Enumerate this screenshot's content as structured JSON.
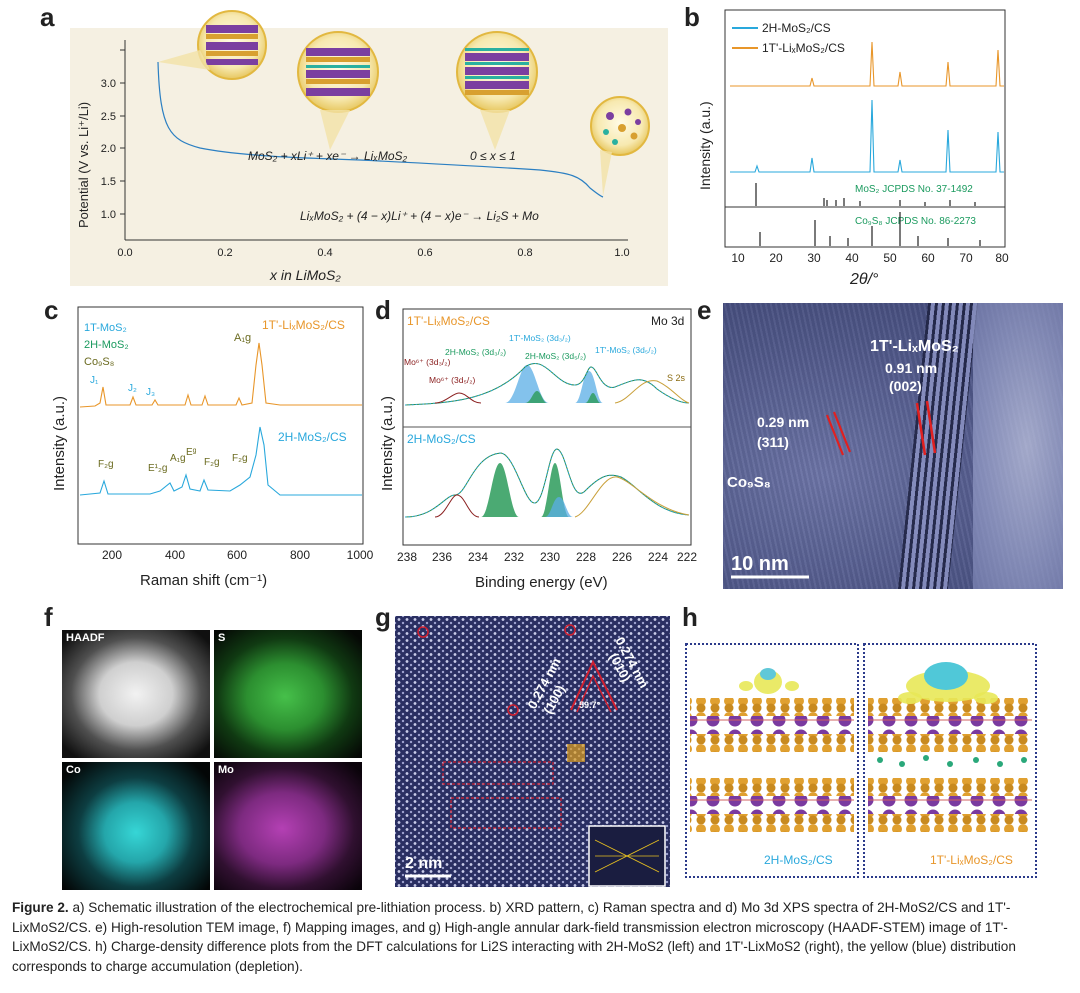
{
  "figure": {
    "label": "Figure 2.",
    "caption": "a) Schematic illustration of the electrochemical pre-lithiation process. b) XRD pattern, c) Raman spectra and d) Mo 3d XPS spectra of 2H-MoS2/CS and 1T'-LixMoS2/CS. e) High-resolution TEM image, f) Mapping images, and g) High-angle annular dark-field transmission electron microscopy (HAADF-STEM) image of 1T'-LixMoS2/CS. h) Charge-density difference plots from the DFT calculations for Li2S interacting with 2H-MoS2 (left) and 1T'-LixMoS2 (right), the yellow (blue) distribution corresponds to charge accumulation (depletion)."
  },
  "panel_a": {
    "label": "a",
    "ylabel": "Potential (V vs. Li⁺/Li)",
    "xlabel": "x in LiMoS₂",
    "eq1": "MoS₂ + xLi⁺ + xe⁻ → LiₓMoS₂",
    "eq1_range": "0 ≤ x ≤ 1",
    "eq2": "LiₓMoS₂ + (4 − x)Li⁺ + (4 − x)e⁻ → Li₂S + Mo",
    "xticks": [
      "0.0",
      "0.2",
      "0.4",
      "0.6",
      "0.8",
      "1.0"
    ],
    "yticks": [
      "1.0",
      "1.5",
      "2.0",
      "2.5",
      "3.0"
    ]
  },
  "panel_b": {
    "label": "b",
    "legend": [
      "2H-MoS₂/CS",
      "1T'-LiₓMoS₂/CS"
    ],
    "ylabel": "Intensity (a.u.)",
    "xlabel": "2θ/°",
    "ref1": "MoS₂ JCPDS No. 37-1492",
    "ref2": "Co₉S₈ JCPDS No. 86-2273",
    "xticks": [
      "10",
      "20",
      "30",
      "40",
      "50",
      "60",
      "70",
      "80"
    ]
  },
  "panel_c": {
    "label": "c",
    "legend": [
      "1T-MoS₂",
      "2H-MoS₂",
      "Co₉S₈"
    ],
    "series_top": "1T'-LiₓMoS₂/CS",
    "series_bottom": "2H-MoS₂/CS",
    "ylabel": "Intensity (a.u.)",
    "xlabel": "Raman shift (cm⁻¹)",
    "xticks": [
      "200",
      "400",
      "600",
      "800",
      "1000"
    ],
    "peaks_top": [
      "J₁",
      "J₂",
      "J₃",
      "A₁g"
    ],
    "peaks_bottom": [
      "F₂g",
      "E¹₂g",
      "A₁g",
      "Eᵍ",
      "F₂g",
      "F₂g"
    ]
  },
  "panel_d": {
    "label": "d",
    "title": "Mo 3d",
    "series_top": "1T'-LiₓMoS₂/CS",
    "series_bottom": "2H-MoS₂/CS",
    "ylabel": "Intensity (a.u.)",
    "xlabel": "Binding energy (eV)",
    "xticks": [
      "238",
      "236",
      "234",
      "232",
      "230",
      "228",
      "226",
      "224",
      "222"
    ],
    "annotations": [
      "Mo⁶⁺ (3d₃/₂)",
      "Mo⁶⁺ (3d₅/₂)",
      "2H-MoS₂ (3d₃/₂)",
      "1T'-MoS₂ (3d₃/₂)",
      "2H-MoS₂ (3d₅/₂)",
      "1T'-MoS₂ (3d₅/₂)",
      "S 2s"
    ]
  },
  "panel_e": {
    "label": "e",
    "phase": "1T'-LiₓMoS₂",
    "spacing1": "0.91 nm",
    "plane1": "(002)",
    "spacing2": "0.29 nm",
    "plane2": "(311)",
    "phase2": "Co₉S₈",
    "scale": "10 nm"
  },
  "panel_f": {
    "label": "f",
    "tiles": [
      "HAADF",
      "S",
      "Co",
      "Mo"
    ]
  },
  "panel_g": {
    "label": "g",
    "spacing_a": "0.274 nm",
    "plane_a": "(100)",
    "spacing_b": "0.274 nm",
    "plane_b": "(010)",
    "angle": "59.7°",
    "scale": "2 nm"
  },
  "panel_h": {
    "label": "h",
    "left": "2H-MoS₂/CS",
    "right": "1T'-LiₓMoS₂/CS"
  },
  "colors": {
    "orange": "#e8962a",
    "blue": "#29a8dc",
    "green": "#1a9a5e",
    "dark_red": "#8b2020"
  }
}
